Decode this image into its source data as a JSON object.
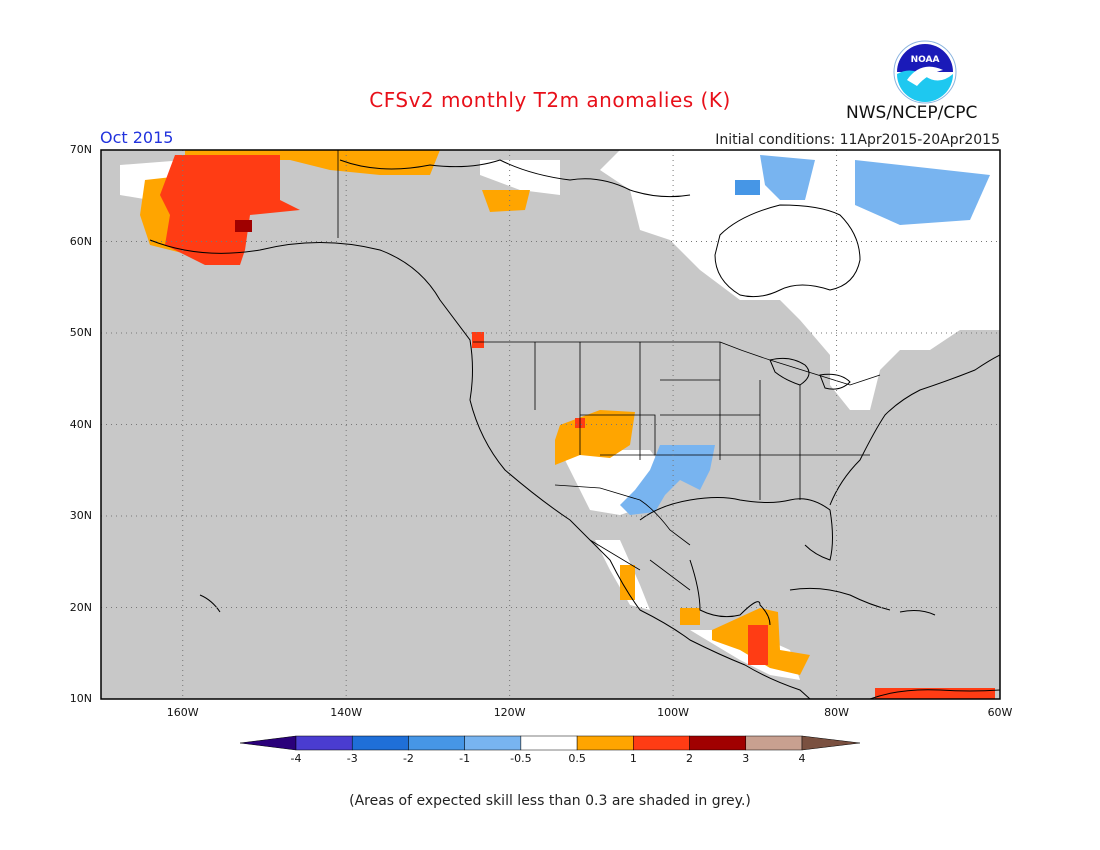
{
  "header": {
    "title": "CFSv2 monthly T2m anomalies (K)",
    "month": "Oct 2015",
    "initial_conditions": "Initial conditions: 11Apr2015-20Apr2015",
    "agency": "NWS/NCEP/CPC",
    "logo_text": "NOAA"
  },
  "map": {
    "lat_labels": [
      "70N",
      "60N",
      "50N",
      "40N",
      "30N",
      "20N",
      "10N"
    ],
    "lon_labels": [
      "160W",
      "140W",
      "120W",
      "100W",
      "80W",
      "60W"
    ],
    "lon_range": [
      -170,
      -60
    ],
    "lat_range": [
      10,
      70
    ],
    "colors": {
      "no_skill": "#c8c8c8",
      "ocean_bg": "#c8c8c8",
      "neutral": "#ffffff",
      "warm_0_5_1": "#ffa500",
      "warm_1_2": "#ff3c14",
      "warm_2_3": "#a00000",
      "cool_-1_-0_5": "#78b4f0",
      "cool_-2_-1": "#4696e6"
    },
    "regions": [
      {
        "name": "alaska-warm-anomaly",
        "class": "1 to 2",
        "color": "#ff3c14"
      },
      {
        "name": "alaska-coast-warm",
        "class": "0.5 to 1",
        "color": "#ffa500"
      },
      {
        "name": "southwest-warm-anomaly",
        "class": "0.5 to 1",
        "color": "#ffa500"
      },
      {
        "name": "southern-plains-cool-anomaly",
        "class": "-1 to -0.5",
        "color": "#78b4f0"
      },
      {
        "name": "canada-arctic-cool",
        "class": "-1 to -0.5",
        "color": "#78b4f0"
      },
      {
        "name": "central-america-warm",
        "class": "1 to 2",
        "color": "#ff3c14"
      }
    ]
  },
  "colorbar": {
    "labels": [
      "-4",
      "-3",
      "-2",
      "-1",
      "-0.5",
      "0.5",
      "1",
      "2",
      "3",
      "4"
    ],
    "colors": [
      "#2a007a",
      "#4a3cd0",
      "#1f6fd8",
      "#4696e6",
      "#78b4f0",
      "#ffffff",
      "#ffa500",
      "#ff3c14",
      "#a00000",
      "#c8a090",
      "#7a5040"
    ]
  },
  "footnote": "(Areas of expected skill less than 0.3 are shaded in grey.)"
}
